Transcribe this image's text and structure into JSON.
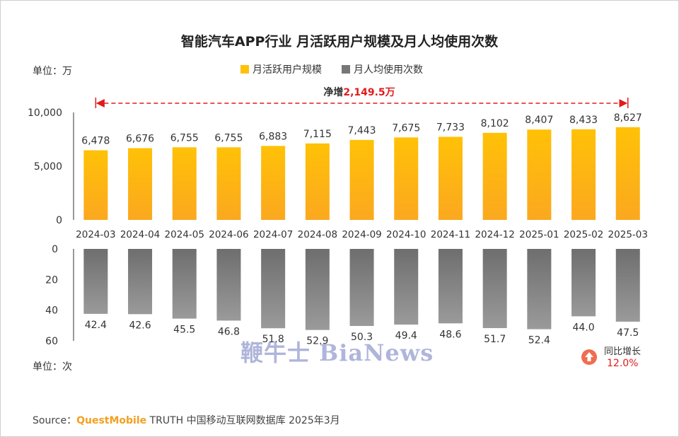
{
  "title": "智能汽车APP行业 月活跃用户规模及月人均使用次数",
  "unit_top": "单位：万",
  "unit_bottom": "单位：次",
  "net_increase": {
    "prefix": "净增",
    "value": "2,149.5万"
  },
  "yoy": {
    "label": "同比增长",
    "value": "12.0%"
  },
  "watermark": "鞭牛士 BiaNews",
  "source": {
    "prefix": "Source：",
    "brand": "QuestMobile",
    "rest": " TRUTH 中国移动互联网数据库 2025年3月"
  },
  "colors": {
    "mau": "#ffc107",
    "mau_bottom": "#fba81f",
    "usage_top": "#6e6e6e",
    "usage_bottom": "#9a9a9a",
    "accent": "#e01b1b"
  },
  "chart_data": {
    "type": "bar",
    "categories": [
      "2024-03",
      "2024-04",
      "2024-05",
      "2024-06",
      "2024-07",
      "2024-08",
      "2024-09",
      "2024-10",
      "2024-11",
      "2024-12",
      "2025-01",
      "2025-02",
      "2025-03"
    ],
    "series": [
      {
        "name": "月活跃用户规模",
        "values": [
          6478,
          6676,
          6755,
          6755,
          6883,
          7115,
          7443,
          7675,
          7733,
          8102,
          8407,
          8433,
          8627
        ],
        "labels": [
          "6,478",
          "6,676",
          "6,755",
          "6,755",
          "6,883",
          "7,115",
          "7,443",
          "7,675",
          "7,733",
          "8,102",
          "8,407",
          "8,433",
          "8,627"
        ]
      },
      {
        "name": "月人均使用次数",
        "values": [
          42.4,
          42.6,
          45.5,
          46.8,
          51.8,
          52.9,
          50.3,
          49.4,
          48.6,
          51.7,
          52.4,
          44.0,
          47.5
        ],
        "labels": [
          "42.4",
          "42.6",
          "45.5",
          "46.8",
          "51.8",
          "52.9",
          "50.3",
          "49.4",
          "48.6",
          "51.7",
          "52.4",
          "44.0",
          "47.5"
        ]
      }
    ],
    "top_axis": {
      "ticks": [
        "0",
        "5,000",
        "10,000"
      ],
      "tick_values": [
        0,
        5000,
        10000
      ],
      "ylim": [
        0,
        10000
      ]
    },
    "bottom_axis": {
      "ticks": [
        "0",
        "20",
        "40",
        "60"
      ],
      "tick_values": [
        0,
        20,
        40,
        60
      ],
      "ylim": [
        0,
        60
      ],
      "inverted": true
    },
    "legend_position": "top-center"
  }
}
